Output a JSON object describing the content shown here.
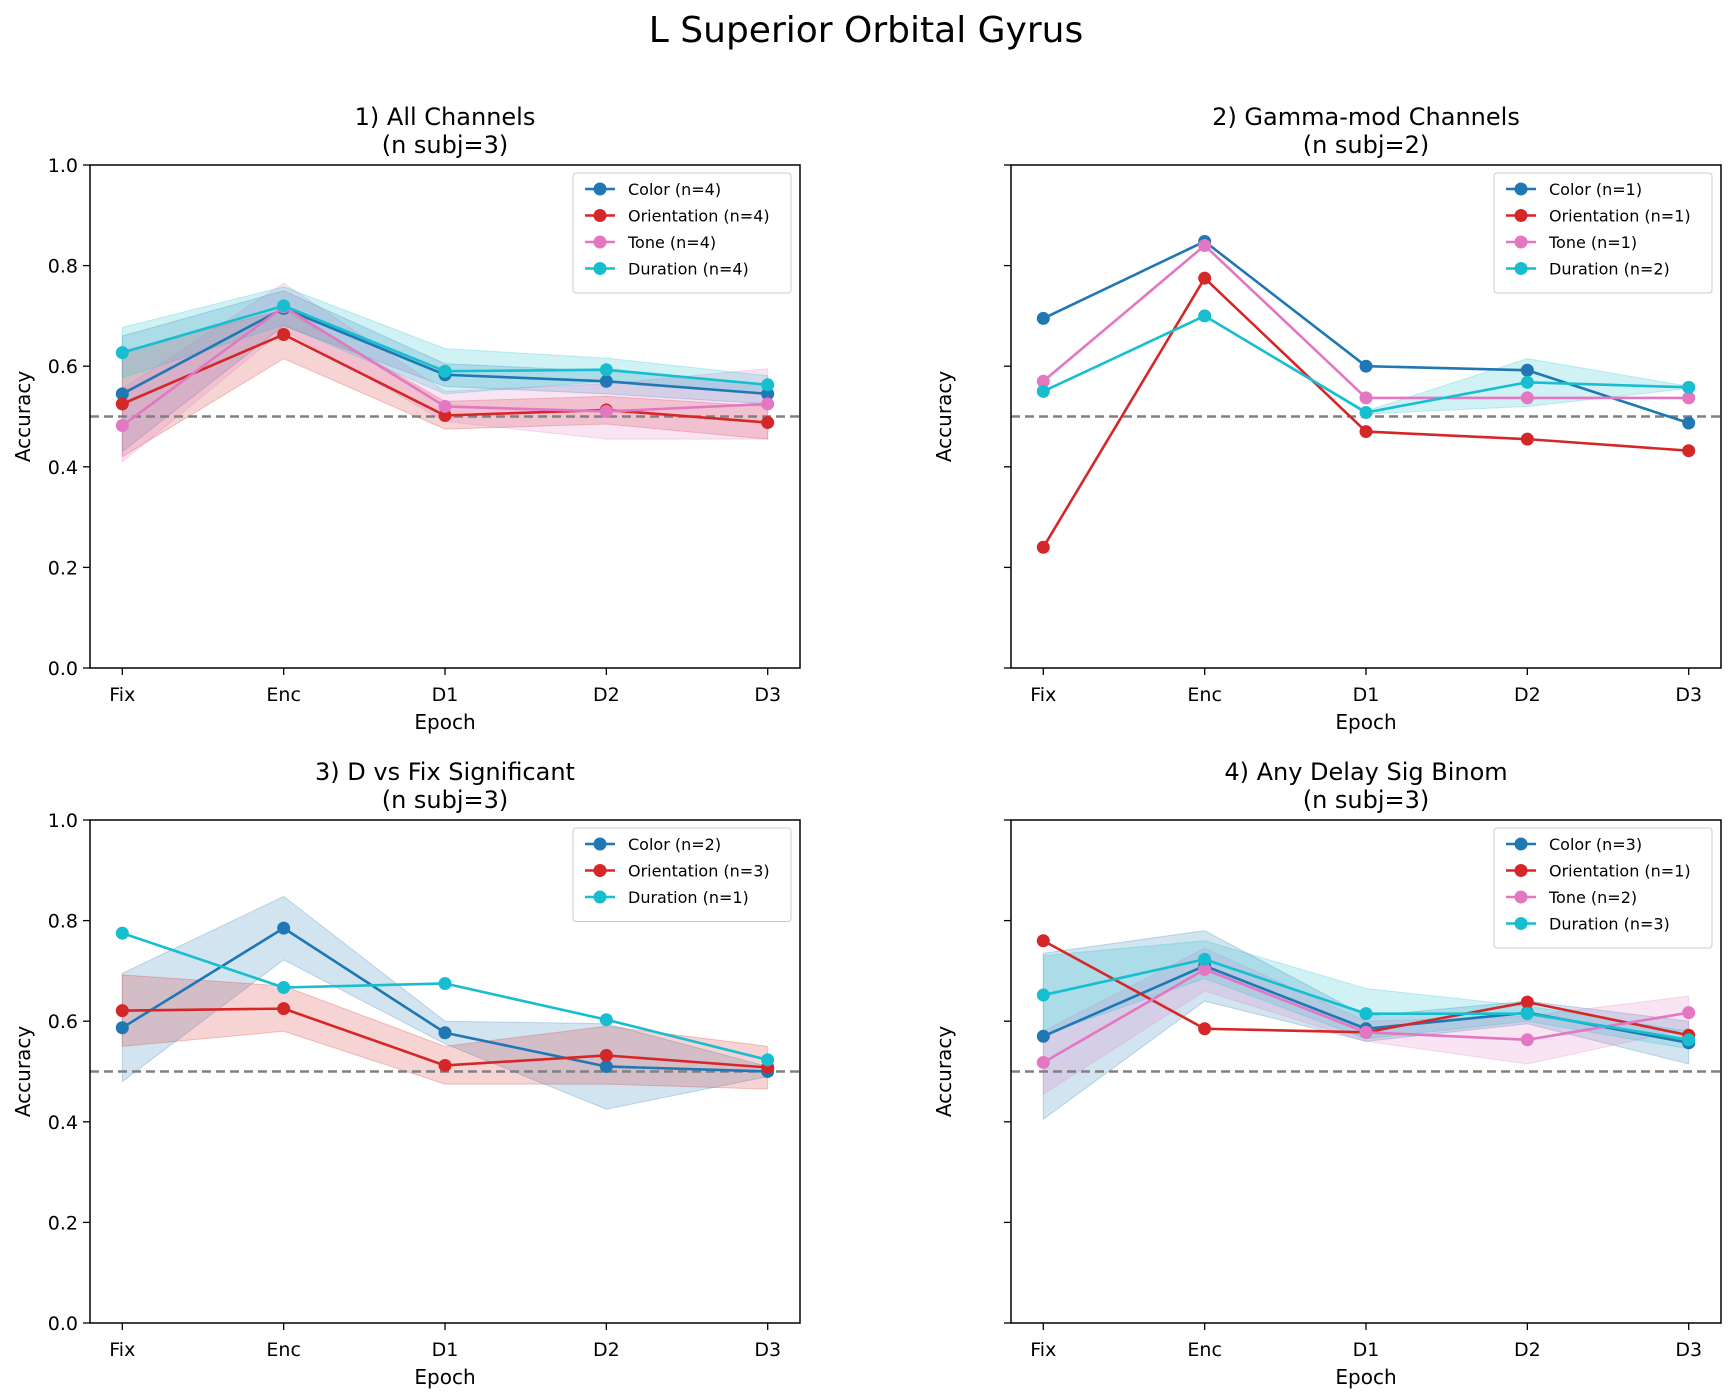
{
  "figure": {
    "title": "L Superior Orbital Gyrus"
  },
  "colors": {
    "Color": "#1f77b4",
    "Orientation": "#d62728",
    "Tone": "#e377c2",
    "Duration": "#17becf",
    "chance": "#808080"
  },
  "chart_data": [
    {
      "type": "line",
      "title": "1) All Channels",
      "subtitle": "(n subj=3)",
      "xlabel": "Epoch",
      "ylabel": "Accuracy",
      "categories": [
        "Fix",
        "Enc",
        "D1",
        "D2",
        "D3"
      ],
      "ylim": [
        0,
        1
      ],
      "yticks": [
        "0.0",
        "0.2",
        "0.4",
        "0.6",
        "0.8",
        "1.0"
      ],
      "show_y_ticklabels": true,
      "chance_level": 0.5,
      "legend_position": "upper right",
      "series": [
        {
          "name": "Color (n=4)",
          "key": "Color",
          "values": [
            0.545,
            0.715,
            0.583,
            0.57,
            0.545
          ],
          "lower": [
            0.43,
            0.68,
            0.56,
            0.545,
            0.525
          ],
          "upper": [
            0.66,
            0.75,
            0.605,
            0.59,
            0.565
          ]
        },
        {
          "name": "Orientation (n=4)",
          "key": "Orientation",
          "values": [
            0.525,
            0.663,
            0.502,
            0.513,
            0.488
          ],
          "lower": [
            0.42,
            0.615,
            0.475,
            0.485,
            0.455
          ],
          "upper": [
            0.63,
            0.712,
            0.53,
            0.54,
            0.52
          ]
        },
        {
          "name": "Tone (n=4)",
          "key": "Tone",
          "values": [
            0.482,
            0.718,
            0.52,
            0.51,
            0.525
          ],
          "lower": [
            0.41,
            0.672,
            0.49,
            0.455,
            0.455
          ],
          "upper": [
            0.555,
            0.765,
            0.55,
            0.565,
            0.595
          ]
        },
        {
          "name": "Duration (n=4)",
          "key": "Duration",
          "values": [
            0.627,
            0.72,
            0.59,
            0.593,
            0.563
          ],
          "lower": [
            0.577,
            0.682,
            0.545,
            0.57,
            0.545
          ],
          "upper": [
            0.677,
            0.758,
            0.635,
            0.616,
            0.581
          ]
        }
      ]
    },
    {
      "type": "line",
      "title": "2) Gamma-mod Channels",
      "subtitle": "(n subj=2)",
      "xlabel": "Epoch",
      "ylabel": "Accuracy",
      "categories": [
        "Fix",
        "Enc",
        "D1",
        "D2",
        "D3"
      ],
      "ylim": [
        0,
        1
      ],
      "yticks": [
        "",
        "",
        "",
        "",
        "",
        ""
      ],
      "show_y_ticklabels": false,
      "chance_level": 0.5,
      "legend_position": "upper right",
      "series": [
        {
          "name": "Color (n=1)",
          "key": "Color",
          "values": [
            0.695,
            0.848,
            0.6,
            0.592,
            0.487
          ]
        },
        {
          "name": "Orientation (n=1)",
          "key": "Orientation",
          "values": [
            0.24,
            0.775,
            0.47,
            0.455,
            0.432
          ]
        },
        {
          "name": "Tone (n=1)",
          "key": "Tone",
          "values": [
            0.57,
            0.84,
            0.537,
            0.537,
            0.537
          ]
        },
        {
          "name": "Duration (n=2)",
          "key": "Duration",
          "values": [
            0.55,
            0.7,
            0.508,
            0.568,
            0.558
          ],
          "lower": [
            0.55,
            0.7,
            0.505,
            0.52,
            0.556
          ],
          "upper": [
            0.55,
            0.702,
            0.511,
            0.615,
            0.56
          ]
        }
      ]
    },
    {
      "type": "line",
      "title": "3) D vs Fix Significant",
      "subtitle": "(n subj=3)",
      "xlabel": "Epoch",
      "ylabel": "Accuracy",
      "categories": [
        "Fix",
        "Enc",
        "D1",
        "D2",
        "D3"
      ],
      "ylim": [
        0,
        1
      ],
      "yticks": [
        "0.0",
        "0.2",
        "0.4",
        "0.6",
        "0.8",
        "1.0"
      ],
      "show_y_ticklabels": true,
      "chance_level": 0.5,
      "legend_position": "upper right",
      "series": [
        {
          "name": "Color (n=2)",
          "key": "Color",
          "values": [
            0.587,
            0.785,
            0.577,
            0.51,
            0.5
          ],
          "lower": [
            0.48,
            0.722,
            0.555,
            0.425,
            0.49
          ],
          "upper": [
            0.695,
            0.848,
            0.6,
            0.595,
            0.51
          ]
        },
        {
          "name": "Orientation (n=3)",
          "key": "Orientation",
          "values": [
            0.621,
            0.625,
            0.512,
            0.532,
            0.508
          ],
          "lower": [
            0.55,
            0.58,
            0.475,
            0.475,
            0.465
          ],
          "upper": [
            0.692,
            0.67,
            0.55,
            0.59,
            0.55
          ]
        },
        {
          "name": "Duration (n=1)",
          "key": "Duration",
          "values": [
            0.775,
            0.667,
            0.675,
            0.603,
            0.523
          ]
        }
      ]
    },
    {
      "type": "line",
      "title": "4) Any Delay Sig Binom",
      "subtitle": "(n subj=3)",
      "xlabel": "Epoch",
      "ylabel": "Accuracy",
      "categories": [
        "Fix",
        "Enc",
        "D1",
        "D2",
        "D3"
      ],
      "ylim": [
        0,
        1
      ],
      "yticks": [
        "",
        "",
        "",
        "",
        "",
        ""
      ],
      "show_y_ticklabels": false,
      "chance_level": 0.5,
      "legend_position": "upper right",
      "series": [
        {
          "name": "Color (n=3)",
          "key": "Color",
          "values": [
            0.57,
            0.71,
            0.585,
            0.617,
            0.557
          ],
          "lower": [
            0.405,
            0.64,
            0.56,
            0.595,
            0.515
          ],
          "upper": [
            0.735,
            0.78,
            0.61,
            0.64,
            0.6
          ]
        },
        {
          "name": "Orientation (n=1)",
          "key": "Orientation",
          "values": [
            0.76,
            0.585,
            0.578,
            0.638,
            0.572
          ]
        },
        {
          "name": "Tone (n=2)",
          "key": "Tone",
          "values": [
            0.518,
            0.703,
            0.578,
            0.563,
            0.617
          ],
          "lower": [
            0.455,
            0.66,
            0.56,
            0.515,
            0.585
          ],
          "upper": [
            0.58,
            0.745,
            0.6,
            0.61,
            0.65
          ]
        },
        {
          "name": "Duration (n=3)",
          "key": "Duration",
          "values": [
            0.652,
            0.723,
            0.615,
            0.615,
            0.563
          ],
          "lower": [
            0.573,
            0.685,
            0.565,
            0.6,
            0.545
          ],
          "upper": [
            0.73,
            0.76,
            0.665,
            0.63,
            0.58
          ]
        }
      ]
    }
  ]
}
